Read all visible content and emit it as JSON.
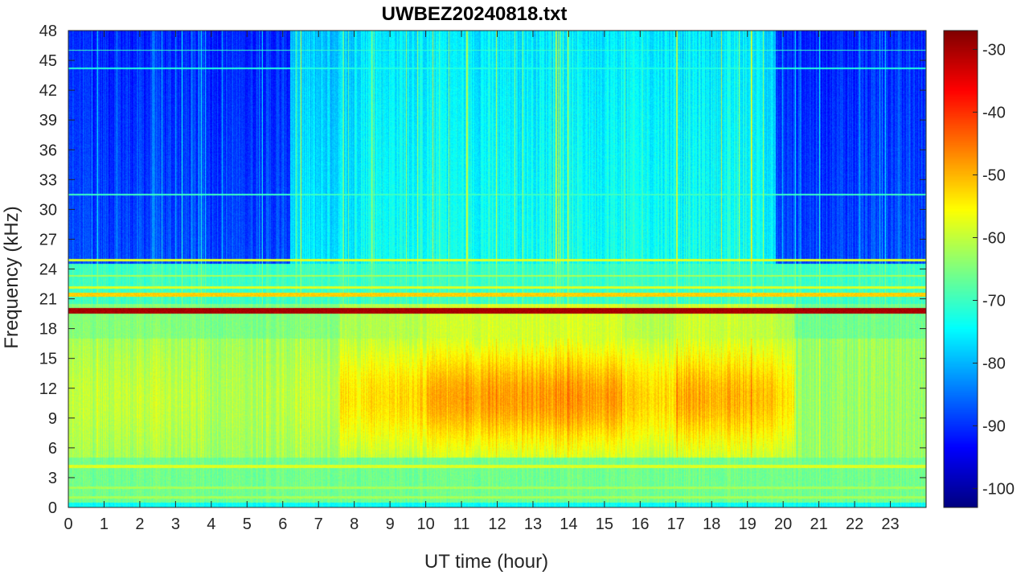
{
  "chart_data": {
    "type": "heatmap",
    "title": "UWBEZ20240818.txt",
    "xlabel": "UT time (hour)",
    "ylabel": "Frequency (kHz)",
    "xlim": [
      0,
      24
    ],
    "ylim": [
      0,
      48
    ],
    "x_ticks": [
      0,
      1,
      2,
      3,
      4,
      5,
      6,
      7,
      8,
      9,
      10,
      11,
      12,
      13,
      14,
      15,
      16,
      17,
      18,
      19,
      20,
      21,
      22,
      23
    ],
    "y_ticks": [
      0,
      3,
      6,
      9,
      12,
      15,
      18,
      21,
      24,
      27,
      30,
      33,
      36,
      39,
      42,
      45,
      48
    ],
    "colorbar": {
      "colormap": "jet",
      "clim": [
        -103,
        -27
      ],
      "ticks": [
        -30,
        -40,
        -50,
        -60,
        -70,
        -80,
        -90,
        -100
      ]
    },
    "features": {
      "strong_tx_line_khz": 19.8,
      "secondary_lines_khz": [
        21.4,
        22.1,
        24.9,
        4.1,
        2.0,
        1.0
      ],
      "broadband_emission_band_khz": [
        5,
        17
      ],
      "emission_peak_hours": [
        [
          8,
          20
        ]
      ]
    }
  }
}
